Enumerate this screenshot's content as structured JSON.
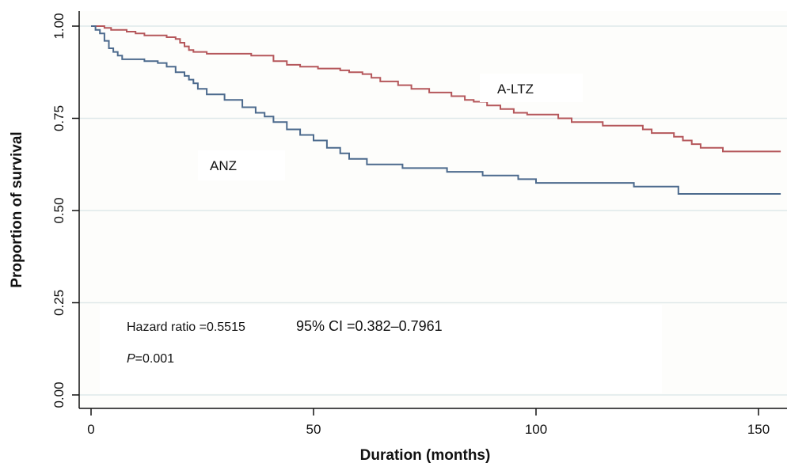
{
  "chart_data": {
    "type": "line",
    "subtype": "kaplan-meier step curve",
    "title": "",
    "xlabel": "Duration (months)",
    "ylabel": "Proportion of survival",
    "xlim": [
      0,
      155
    ],
    "ylim": [
      0,
      1
    ],
    "x_ticks": [
      0,
      50,
      100,
      150
    ],
    "x_tick_labels": [
      "0",
      "50",
      "100",
      "150"
    ],
    "y_ticks": [
      0,
      0.25,
      0.5,
      0.75,
      1
    ],
    "y_tick_labels": [
      "0.00",
      "0.25",
      "0.50",
      "0.75",
      "1.00"
    ],
    "grid": "horizontal",
    "grid_color": "#dfe9ea",
    "plot_background": "#fdfdfb",
    "series": [
      {
        "name": "A-LTZ",
        "color": "#b5575b",
        "x": [
          0,
          1.5,
          3,
          4.5,
          6,
          8,
          10,
          12,
          14,
          17,
          19,
          20,
          21,
          22,
          23,
          25,
          26,
          28,
          30,
          36,
          41,
          44,
          47,
          51,
          56,
          58,
          61,
          63,
          65,
          69,
          72,
          76,
          81,
          84,
          86,
          89,
          92,
          95,
          98,
          105,
          108,
          115,
          124,
          126,
          131,
          133,
          135,
          137,
          142,
          155
        ],
        "y": [
          1.0,
          1.0,
          0.995,
          0.99,
          0.99,
          0.985,
          0.98,
          0.975,
          0.975,
          0.97,
          0.965,
          0.955,
          0.945,
          0.935,
          0.93,
          0.93,
          0.925,
          0.925,
          0.925,
          0.92,
          0.905,
          0.895,
          0.89,
          0.885,
          0.88,
          0.875,
          0.87,
          0.86,
          0.85,
          0.84,
          0.83,
          0.82,
          0.81,
          0.8,
          0.795,
          0.785,
          0.775,
          0.765,
          0.76,
          0.75,
          0.74,
          0.73,
          0.72,
          0.71,
          0.7,
          0.69,
          0.68,
          0.67,
          0.66,
          0.66
        ]
      },
      {
        "name": "ANZ",
        "color": "#4c6a8d",
        "x": [
          0,
          1,
          2,
          3,
          4,
          5,
          6,
          7,
          8,
          12,
          15,
          17,
          19,
          21,
          22,
          23,
          24,
          26,
          30,
          34,
          37,
          39,
          41,
          44,
          47,
          50,
          53,
          56,
          58,
          62,
          70,
          80,
          88,
          96,
          100,
          110,
          122,
          132,
          155
        ],
        "y": [
          1.0,
          0.99,
          0.98,
          0.96,
          0.94,
          0.93,
          0.92,
          0.91,
          0.91,
          0.905,
          0.9,
          0.89,
          0.875,
          0.865,
          0.855,
          0.845,
          0.83,
          0.815,
          0.8,
          0.78,
          0.765,
          0.755,
          0.74,
          0.72,
          0.705,
          0.69,
          0.67,
          0.655,
          0.64,
          0.625,
          0.615,
          0.605,
          0.595,
          0.585,
          0.575,
          0.575,
          0.565,
          0.545,
          0.545
        ]
      }
    ],
    "labels": {
      "a_ltz": "A-LTZ",
      "anz": "ANZ"
    },
    "annotations": {
      "hazard": "Hazard ratio =0.5515",
      "ci": "95% CI =0.382–0.7961",
      "p_letter": "P",
      "p_value": "=0.001"
    }
  }
}
